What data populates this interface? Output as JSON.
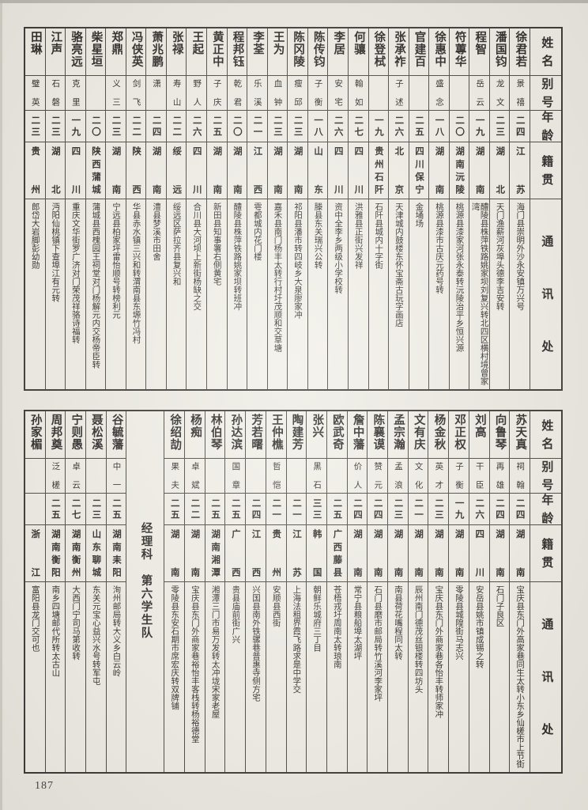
{
  "page": {
    "number": "187"
  },
  "headers": {
    "name": "姓名",
    "alias": "别号",
    "age": "年龄",
    "native": "籍贯",
    "address": "通讯处"
  },
  "section_label": "经理科　第六学生队",
  "table_top": {
    "people": [
      {
        "name": "徐君若",
        "alias": "景禧",
        "age": "二四",
        "native": "江苏",
        "address": "海门县崇明外沙永安镇万兴号"
      },
      {
        "name": "潘国钧",
        "alias": "龙文",
        "age": "二三",
        "native": "湖北",
        "address": "天门渔薪河灰埠头德李吉安转"
      },
      {
        "name": "程智",
        "alias": "岳云",
        "age": "一九",
        "native": "湖南",
        "address": "醴陵县株萍铁路姚家坝刘复兴转北四区横村境曾家湾"
      },
      {
        "name": "符蓴华",
        "alias": "",
        "age": "二〇",
        "native": "湖南沅陵",
        "address": "桃源县漆家河张永泰转沅陵治平乡恒兴源"
      },
      {
        "name": "徐惠中",
        "alias": "盛念",
        "age": "一八",
        "native": "湖南",
        "address": "桃源县漆市古庆元药号转"
      },
      {
        "name": "官建百",
        "alias": "",
        "age": "二五",
        "native": "四川保宁",
        "address": "金埇场"
      },
      {
        "name": "张承祚",
        "alias": "子述",
        "age": "二六",
        "native": "北京",
        "address": "天津城内鼓楼东怀宝斋古玩字画店"
      },
      {
        "name": "徐登栻",
        "alias": "",
        "age": "一九",
        "native": "贵州石阡",
        "address": "石阡县城内十字街"
      },
      {
        "name": "何骧",
        "alias": "翰如",
        "age": "二七",
        "native": "四川",
        "address": "洪雅县正街兴发祥"
      },
      {
        "name": "李居",
        "alias": "安宅",
        "age": "二六",
        "native": "四川",
        "address": "资中全李乡两级小学校转"
      },
      {
        "name": "陈传钧",
        "alias": "子衡",
        "age": "一八",
        "native": "山东",
        "address": "滕县东关瑞兴公转"
      },
      {
        "name": "陈冈陵",
        "alias": "瘦邱",
        "age": "二三",
        "native": "湖南",
        "address": "祁阳县潘市转四岐乡大泉廖家冲"
      },
      {
        "name": "王为",
        "alias": "血钟",
        "age": "二三",
        "native": "湖南",
        "address": "嘉禾县南门杨丰太转行村圩茂顺和交草塘"
      },
      {
        "name": "李荃",
        "alias": "乐溪",
        "age": "二一",
        "native": "江西",
        "address": "雩都城内花门楼"
      },
      {
        "name": "程邦钰",
        "alias": "乾君",
        "age": "二〇",
        "native": "湖南",
        "address": "醴陵县株萍铁路姚家坝转班冲"
      },
      {
        "name": "黄正中",
        "alias": "子庆",
        "age": "二五",
        "native": "湖南",
        "address": "新田县知事署右侧黄宅"
      },
      {
        "name": "王起",
        "alias": "野人",
        "age": "二六",
        "native": "四川",
        "address": "合川县大河坝上新街杨缺之交"
      },
      {
        "name": "张禄",
        "alias": "寿山",
        "age": "二二",
        "native": "绥远",
        "address": "绥远区萨拉齐县复兴和"
      },
      {
        "name": "萧兆鹏",
        "alias": "潇",
        "age": "二四",
        "native": "湖南",
        "address": "澧县梦溪市田舍"
      },
      {
        "name": "冯侠英",
        "alias": "剑飞",
        "age": "二二",
        "native": "陕西",
        "address": "华县赤水镇三兴和转渭南县东塬竹冯村"
      },
      {
        "name": "郑鼎",
        "alias": "义三",
        "age": "二三",
        "native": "湖南",
        "address": "宁远县柏家坪雷怡顺号转榜利元"
      },
      {
        "name": "柴星垣",
        "alias": "",
        "age": "二〇",
        "native": "陕西蒲城",
        "address": "蒲城县西槐园王祠堂对门杨解元内交杨帝臣转"
      },
      {
        "name": "骆亮远",
        "alias": "克里",
        "age": "一九",
        "native": "四川",
        "address": "重庆文华街罗广济对门荣茂祥骆诗福转"
      },
      {
        "name": "江声",
        "alias": "石磐",
        "age": "二三",
        "native": "湖北",
        "address": "沔阳仙桃镇下查埠江有元转"
      },
      {
        "name": "田琳",
        "alias": "璧英",
        "age": "二三",
        "native": "贵州",
        "address": "郎岱大岩脚彭幼勋"
      }
    ]
  },
  "table_bottom": {
    "people": [
      {
        "name": "苏天真",
        "alias": "祠翰",
        "age": "二四",
        "native": "湖南",
        "address": "宝庆县东门外高家巷同生太转小东乡仙槎市上节街"
      },
      {
        "name": "向鲁琴",
        "alias": "再雄",
        "age": "二四",
        "native": "湖南",
        "address": "石门子良区"
      },
      {
        "name": "刘高",
        "alias": "干臣",
        "age": "二六",
        "native": "四川",
        "address": "安岳县姚市镇成锡之转"
      },
      {
        "name": "邓正权",
        "alias": "子衡",
        "age": "一九",
        "native": "湖南",
        "address": "零陵县城隍街马志兴"
      },
      {
        "name": "杨金秋",
        "alias": "英才",
        "age": "二三",
        "native": "湖南",
        "address": "宝庆县东门外商家巷各怡丰转师家冲"
      },
      {
        "name": "文有庆",
        "alias": "文化",
        "age": "二一",
        "native": "湖南",
        "address": "辰州南门德茂丝银楼转四坊头"
      },
      {
        "name": "孟宗瀚",
        "alias": "孟浪",
        "age": "二三",
        "native": "湖南",
        "address": "南县荷花嘴程同太转"
      },
      {
        "name": "陈襄谟",
        "alias": "赞元",
        "age": "二四",
        "native": "湖南",
        "address": "石门县磨市邮局转竹溪河李家坪"
      },
      {
        "name": "詹中藩",
        "alias": "价人",
        "age": "二四",
        "native": "湖南",
        "address": "常宁县粮船埠太湖坪"
      },
      {
        "name": "欧武奇",
        "alias": "",
        "age": "二五",
        "native": "广西藤县",
        "address": "苍梧戎圩周南太转琅南"
      },
      {
        "name": "张兴",
        "alias": "黑石",
        "age": "三三",
        "native": "韩国",
        "address": "朝鲜乐城府三丁目"
      },
      {
        "name": "陶建芳",
        "alias": "",
        "age": "二一",
        "native": "江苏",
        "address": "上海法租界霞飞路求是中学交"
      },
      {
        "name": "王仲樵",
        "alias": "哲恺",
        "age": "二一",
        "native": "贵州",
        "address": "安顺县西街"
      },
      {
        "name": "芳若曙",
        "alias": "",
        "age": "二四",
        "native": "江西",
        "address": "兴国县南外铁骡巷普惠寺侧方宅"
      },
      {
        "name": "孙达滨",
        "alias": "国章",
        "age": "二五",
        "native": "广西",
        "address": "贵县庙前街广兴"
      },
      {
        "name": "林伯琴",
        "alias": "",
        "age": "二五",
        "native": "湖南湘潭",
        "address": "湘潭三门市易万发转太冲垅宋家老屋"
      },
      {
        "name": "杨痴",
        "alias": "卓斌",
        "age": "二二",
        "native": "湖南",
        "address": "宝庆县东门外商家巷裕怡丰客栈转杨裕德堂"
      },
      {
        "separator": true
      },
      {
        "name": "谷毓藩",
        "alias": "中一",
        "age": "二五",
        "native": "湖南耒阳",
        "address": "洵州邮局转大义乡白云岭"
      },
      {
        "name": "聂松溪",
        "alias": "",
        "age": "二三",
        "native": "山东聊城",
        "address": "东关元宝心益兴水号转军屯"
      },
      {
        "name": "宁则愚",
        "alias": "卓云",
        "age": "二七",
        "native": "湖南衡州",
        "address": "大西门宁司马第收转"
      },
      {
        "name": "周邦奠",
        "alias": "泛槎",
        "age": "二五",
        "native": "湖南衡阳",
        "address": "南乡四塘邮代所转太古山"
      },
      {
        "name": "孙家楣",
        "alias": "",
        "age": "",
        "native": "浙江",
        "address": "富阳县龙门交可也"
      }
    ],
    "separator_after_index": 17,
    "note": "徐绍劼 column sits right of the separator",
    "extra_person": {
      "name": "徐绍劼",
      "alias": "果夫",
      "age": "二五",
      "native": "湖南",
      "address": "零陵县东安石期市席宏庆转双牌铺"
    }
  }
}
